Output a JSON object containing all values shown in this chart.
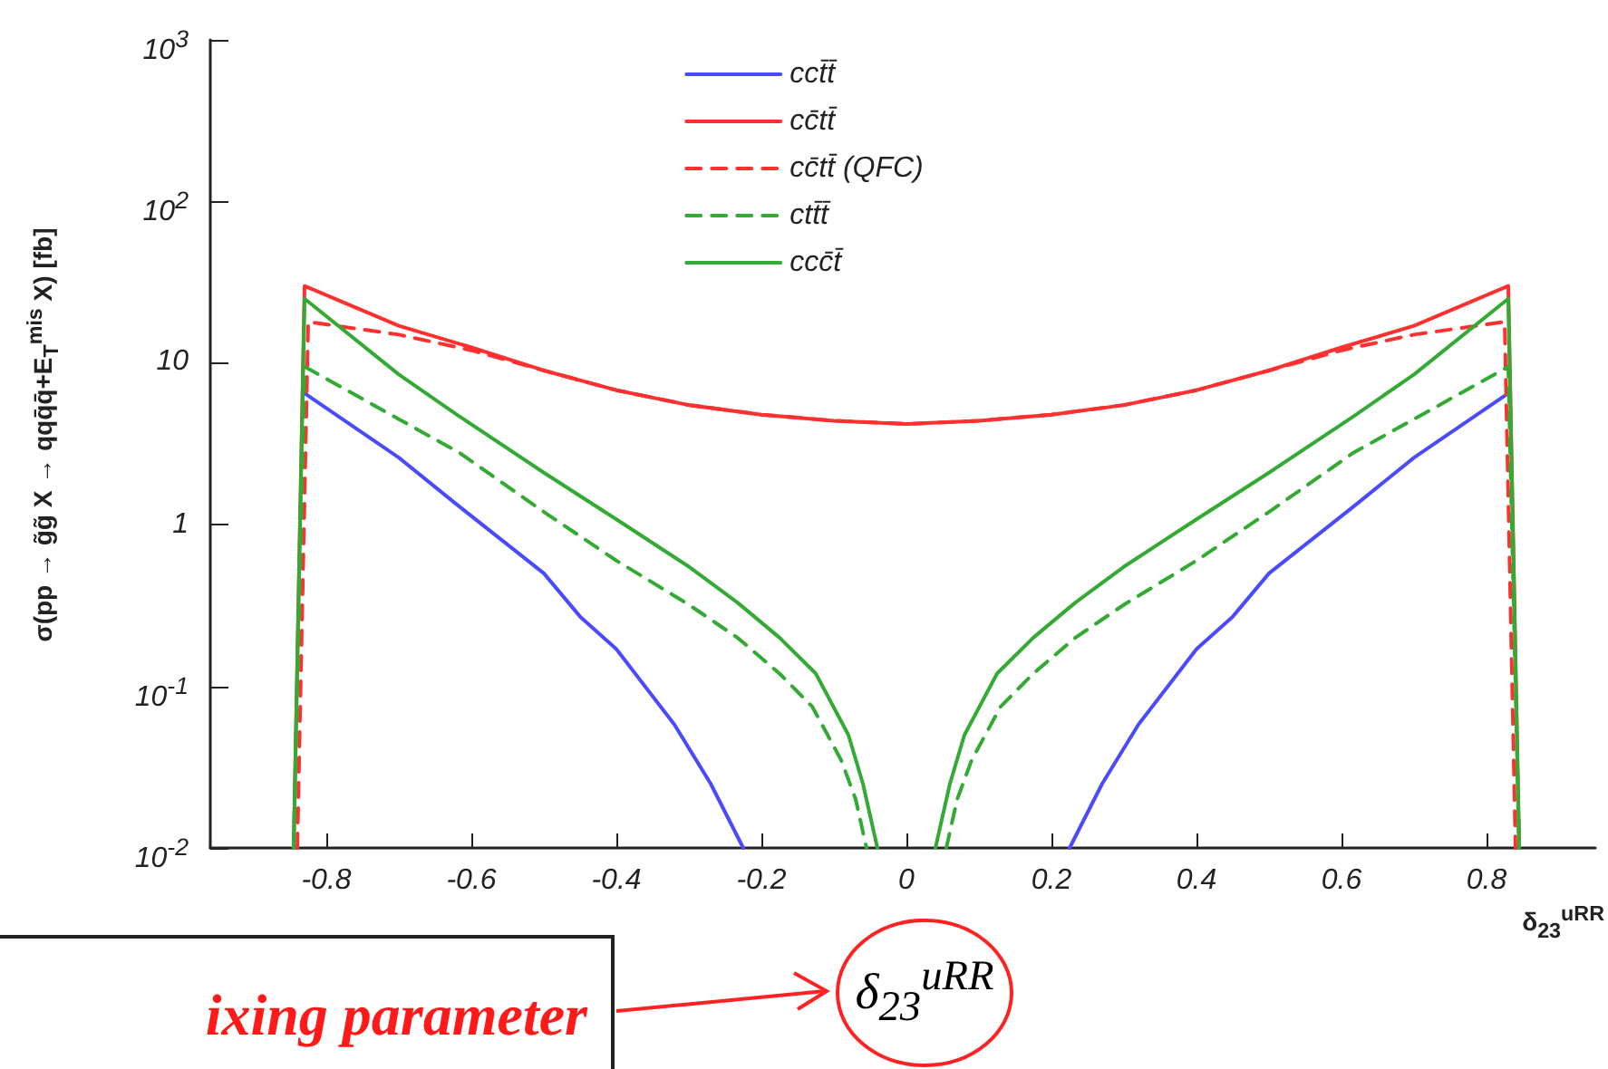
{
  "chart_data": {
    "type": "line",
    "xlabel": "δ$_{23}$$^{uRR}$",
    "ylabel": "σ(pp → g̃g̃ X → qqq̄q̄+E$_{T}$$^{mis}$ X) [fb]",
    "log": "y",
    "xlim": [
      -0.96,
      0.95
    ],
    "xticks": [
      -0.8,
      -0.6,
      -0.4,
      -0.2,
      0,
      0.2,
      0.4,
      0.6,
      0.8
    ],
    "ylim": [
      0.01,
      1000
    ],
    "yticks": [
      {
        "value": 0.01,
        "label": "10$^{-2}$"
      },
      {
        "value": 0.1,
        "label": "10$^{-1}$"
      },
      1,
      10,
      {
        "value": 100,
        "label": "10$^{2}$"
      },
      {
        "value": 1000,
        "label": "10$^{3}$"
      }
    ],
    "grid": false,
    "legend": "top",
    "marker": "none",
    "series": [
      {
        "name": "cct̄t̄",
        "color": "#4a4aff",
        "line_style": "solid",
        "x": [
          -0.83,
          -0.7,
          -0.617,
          -0.5,
          -0.45,
          -0.4,
          -0.32,
          -0.27,
          -0.225,
          0,
          0.225,
          0.27,
          0.32,
          0.4,
          0.45,
          0.5,
          0.617,
          0.7,
          0.83
        ],
        "values": [
          6.5,
          2.6,
          1.3,
          0.5,
          0.27,
          0.17,
          0.058,
          0.025,
          0.01,
          null,
          0.01,
          0.025,
          0.058,
          0.17,
          0.27,
          0.5,
          1.3,
          2.6,
          6.5
        ]
      },
      {
        "name": "cc̄tt̄",
        "color": "#ff3030",
        "line_style": "solid",
        "x": [
          -0.845,
          -0.83,
          -0.7,
          -0.6,
          -0.5,
          -0.4,
          -0.3,
          -0.2,
          -0.1,
          0,
          0.1,
          0.2,
          0.3,
          0.4,
          0.5,
          0.6,
          0.7,
          0.83,
          0.845
        ],
        "values": [
          0.01,
          30,
          17,
          12.5,
          9,
          6.8,
          5.5,
          4.8,
          4.4,
          4.2,
          4.4,
          4.8,
          5.5,
          6.8,
          9,
          12.5,
          17,
          30,
          0.01
        ]
      },
      {
        "name": "cc̄tt̄ (QFC)",
        "color": "#ff3030",
        "line_style": "dashed",
        "x": [
          -0.84,
          -0.825,
          -0.7,
          -0.6,
          -0.5,
          -0.4,
          -0.3,
          -0.2,
          -0.1,
          0,
          0.1,
          0.2,
          0.3,
          0.4,
          0.5,
          0.6,
          0.7,
          0.825,
          0.84
        ],
        "values": [
          0.01,
          18,
          15,
          12,
          9,
          6.8,
          5.5,
          4.8,
          4.4,
          4.2,
          4.4,
          4.8,
          5.5,
          6.8,
          9,
          12,
          15,
          18,
          0.01
        ]
      },
      {
        "name": "ctt̄t̄",
        "color": "#33aa33",
        "line_style": "dashed",
        "x": [
          -0.845,
          -0.83,
          -0.7,
          -0.617,
          -0.5,
          -0.4,
          -0.3,
          -0.233,
          -0.175,
          -0.13,
          -0.09,
          -0.07,
          -0.055,
          0,
          0.055,
          0.07,
          0.09,
          0.13,
          0.175,
          0.233,
          0.3,
          0.4,
          0.5,
          0.617,
          0.7,
          0.83,
          0.845
        ],
        "values": [
          0.01,
          9.5,
          4.5,
          2.8,
          1.2,
          0.6,
          0.32,
          0.2,
          0.12,
          0.075,
          0.035,
          0.02,
          0.01,
          null,
          0.01,
          0.02,
          0.035,
          0.075,
          0.12,
          0.2,
          0.32,
          0.6,
          1.2,
          2.8,
          4.5,
          9.5,
          0.01
        ]
      },
      {
        "name": "ccc̄t̄",
        "color": "#33aa33",
        "line_style": "solid",
        "x": [
          -0.845,
          -0.83,
          -0.7,
          -0.617,
          -0.5,
          -0.4,
          -0.3,
          -0.233,
          -0.175,
          -0.125,
          -0.08,
          -0.06,
          -0.04,
          0,
          0.04,
          0.06,
          0.08,
          0.125,
          0.175,
          0.233,
          0.3,
          0.4,
          0.5,
          0.617,
          0.7,
          0.83,
          0.845
        ],
        "values": [
          0.01,
          25,
          8.5,
          4.7,
          2.1,
          1.08,
          0.55,
          0.33,
          0.2,
          0.12,
          0.05,
          0.025,
          0.01,
          null,
          0.01,
          0.025,
          0.05,
          0.12,
          0.2,
          0.33,
          0.55,
          1.08,
          2.1,
          4.7,
          8.5,
          25,
          0.01
        ]
      }
    ],
    "annotations": [
      "ixing parameter",
      "δ$_{23}$$^{uRR}$"
    ]
  }
}
